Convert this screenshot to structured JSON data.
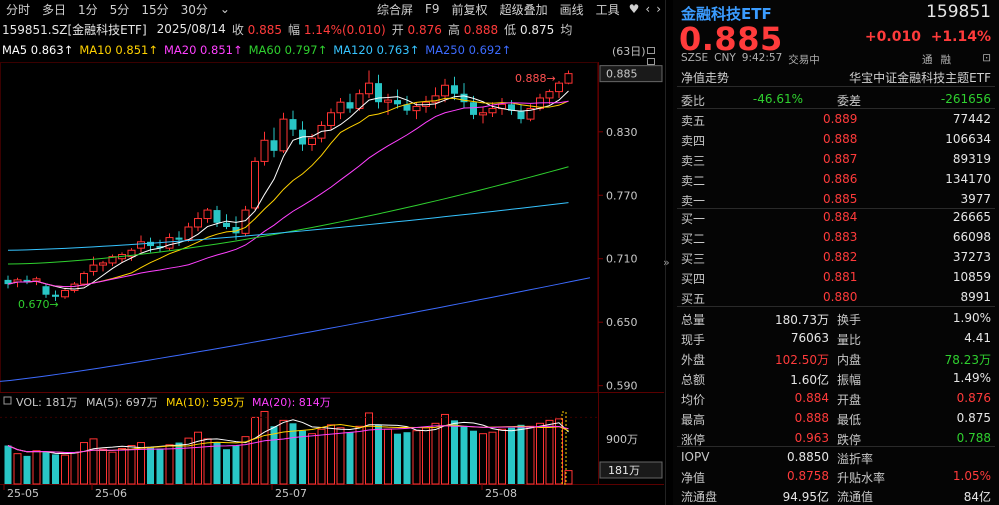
{
  "toolbar": {
    "items": [
      "分时",
      "多日",
      "1分",
      "5分",
      "15分",
      "30分",
      "⌄"
    ],
    "right_items": [
      "综合屏",
      "F9",
      "前复权",
      "超级叠加",
      "画线",
      "工具",
      "♥",
      "‹",
      "›"
    ]
  },
  "info": {
    "symbol": "159851.SZ[金融科技ETF]",
    "date": "2025/08/14",
    "close_label": "收",
    "close": "0.885",
    "amp_label": "幅",
    "amp": "1.14%(0.010)",
    "open_label": "开",
    "open": "0.876",
    "high_label": "高",
    "high": "0.888",
    "low_label": "低",
    "low": "0.875",
    "avg_label": "均"
  },
  "ma": {
    "ma5": "MA5 0.863↑",
    "ma10": "MA10 0.851↑",
    "ma20": "MA20 0.851↑",
    "ma60": "MA60 0.797↑",
    "ma120": "MA120 0.763↑",
    "ma250": "MA250 0.692↑",
    "colors": {
      "ma5": "#ffffff",
      "ma10": "#ffd200",
      "ma20": "#ff40ff",
      "ma60": "#2fd02f",
      "ma120": "#36c4ff",
      "ma250": "#3d6bff"
    }
  },
  "cycle": "(63日)",
  "price_axis": {
    "labels": [
      "0.885",
      "0.830",
      "0.770",
      "0.710",
      "0.650",
      "0.590"
    ],
    "high_marker": "0.888→",
    "low_marker": "0.670→"
  },
  "volume": {
    "header": "VOL: 181万",
    "ma5": "MA(5): 697万",
    "ma10": "MA(10): 595万",
    "ma20": "MA(20): 814万",
    "axis_top": "900万",
    "current": "181万"
  },
  "dates": [
    "25-05",
    "25-06",
    "25-07",
    "25-08"
  ],
  "collapse": "»",
  "panel": {
    "title": "金融科技ETF",
    "code": "159851",
    "price": "0.885",
    "change": "+0.010",
    "change_pct": "+1.14%",
    "meta": [
      "SZSE",
      "CNY",
      "9:42:57",
      "交易中"
    ],
    "tong": [
      "通",
      "融"
    ],
    "subtitle_left": "净值走势",
    "subtitle_right": "华宝中证金融科技主题ETF",
    "weibi_label": "委比",
    "weibi": "-46.61%",
    "weicha_label": "委差",
    "weicha": "-261656",
    "asks": [
      {
        "label": "卖五",
        "price": "0.889",
        "vol": "77442"
      },
      {
        "label": "卖四",
        "price": "0.888",
        "vol": "106634"
      },
      {
        "label": "卖三",
        "price": "0.887",
        "vol": "89319"
      },
      {
        "label": "卖二",
        "price": "0.886",
        "vol": "134170"
      },
      {
        "label": "卖一",
        "price": "0.885",
        "vol": "3977"
      }
    ],
    "bids": [
      {
        "label": "买一",
        "price": "0.884",
        "vol": "26665"
      },
      {
        "label": "买二",
        "price": "0.883",
        "vol": "66098"
      },
      {
        "label": "买三",
        "price": "0.882",
        "vol": "37273"
      },
      {
        "label": "买四",
        "price": "0.881",
        "vol": "10859"
      },
      {
        "label": "买五",
        "price": "0.880",
        "vol": "8991"
      }
    ],
    "stats": [
      {
        "l1": "总量",
        "v1": "180.73万",
        "c1": "white",
        "l2": "换手",
        "v2": "1.90%",
        "c2": "white"
      },
      {
        "l1": "现手",
        "v1": "76063",
        "c1": "white",
        "l2": "量比",
        "v2": "4.41",
        "c2": "white"
      },
      {
        "l1": "外盘",
        "v1": "102.50万",
        "c1": "red",
        "l2": "内盘",
        "v2": "78.23万",
        "c2": "green"
      },
      {
        "l1": "总额",
        "v1": "1.60亿",
        "c1": "white",
        "l2": "振幅",
        "v2": "1.49%",
        "c2": "white"
      },
      {
        "l1": "均价",
        "v1": "0.884",
        "c1": "red",
        "l2": "开盘",
        "v2": "0.876",
        "c2": "red"
      },
      {
        "l1": "最高",
        "v1": "0.888",
        "c1": "red",
        "l2": "最低",
        "v2": "0.875",
        "c2": "white"
      },
      {
        "l1": "涨停",
        "v1": "0.963",
        "c1": "red",
        "l2": "跌停",
        "v2": "0.788",
        "c2": "green"
      }
    ],
    "stats2": [
      {
        "l1": "IOPV",
        "v1": "0.8850",
        "c1": "white",
        "l2": "溢折率",
        "v2": "",
        "c2": "white"
      },
      {
        "l1": "净值",
        "v1": "0.8758",
        "c1": "red",
        "l2": "升贴水率",
        "v2": "1.05%",
        "c2": "red"
      },
      {
        "l1": "流通盘",
        "v1": "94.95亿",
        "c1": "white",
        "l2": "流通值",
        "v2": "84亿",
        "c2": "white"
      }
    ]
  },
  "candles": [
    [
      0.69,
      0.694,
      0.682,
      0.686
    ],
    [
      0.688,
      0.692,
      0.683,
      0.69
    ],
    [
      0.69,
      0.694,
      0.686,
      0.688
    ],
    [
      0.689,
      0.693,
      0.685,
      0.691
    ],
    [
      0.684,
      0.686,
      0.673,
      0.676
    ],
    [
      0.676,
      0.68,
      0.67,
      0.674
    ],
    [
      0.674,
      0.682,
      0.672,
      0.68
    ],
    [
      0.68,
      0.688,
      0.678,
      0.686
    ],
    [
      0.686,
      0.698,
      0.684,
      0.696
    ],
    [
      0.698,
      0.712,
      0.694,
      0.704
    ],
    [
      0.704,
      0.708,
      0.698,
      0.706
    ],
    [
      0.706,
      0.714,
      0.703,
      0.712
    ],
    [
      0.71,
      0.716,
      0.706,
      0.714
    ],
    [
      0.712,
      0.72,
      0.708,
      0.718
    ],
    [
      0.72,
      0.732,
      0.716,
      0.726
    ],
    [
      0.726,
      0.73,
      0.716,
      0.722
    ],
    [
      0.722,
      0.728,
      0.716,
      0.72
    ],
    [
      0.72,
      0.734,
      0.718,
      0.73
    ],
    [
      0.73,
      0.736,
      0.722,
      0.728
    ],
    [
      0.728,
      0.744,
      0.726,
      0.74
    ],
    [
      0.74,
      0.754,
      0.736,
      0.748
    ],
    [
      0.748,
      0.758,
      0.744,
      0.756
    ],
    [
      0.756,
      0.76,
      0.74,
      0.744
    ],
    [
      0.744,
      0.752,
      0.738,
      0.74
    ],
    [
      0.74,
      0.75,
      0.728,
      0.734
    ],
    [
      0.734,
      0.76,
      0.732,
      0.756
    ],
    [
      0.758,
      0.806,
      0.756,
      0.802
    ],
    [
      0.802,
      0.83,
      0.798,
      0.822
    ],
    [
      0.822,
      0.834,
      0.806,
      0.812
    ],
    [
      0.812,
      0.848,
      0.81,
      0.842
    ],
    [
      0.842,
      0.85,
      0.826,
      0.832
    ],
    [
      0.832,
      0.84,
      0.812,
      0.818
    ],
    [
      0.818,
      0.828,
      0.812,
      0.824
    ],
    [
      0.824,
      0.84,
      0.82,
      0.836
    ],
    [
      0.836,
      0.852,
      0.832,
      0.848
    ],
    [
      0.848,
      0.862,
      0.842,
      0.858
    ],
    [
      0.858,
      0.866,
      0.848,
      0.852
    ],
    [
      0.852,
      0.87,
      0.85,
      0.866
    ],
    [
      0.866,
      0.888,
      0.862,
      0.876
    ],
    [
      0.876,
      0.884,
      0.852,
      0.858
    ],
    [
      0.858,
      0.866,
      0.846,
      0.86
    ],
    [
      0.86,
      0.87,
      0.852,
      0.856
    ],
    [
      0.856,
      0.864,
      0.846,
      0.85
    ],
    [
      0.85,
      0.858,
      0.842,
      0.854
    ],
    [
      0.854,
      0.864,
      0.848,
      0.858
    ],
    [
      0.858,
      0.872,
      0.852,
      0.864
    ],
    [
      0.864,
      0.88,
      0.858,
      0.874
    ],
    [
      0.874,
      0.882,
      0.86,
      0.866
    ],
    [
      0.866,
      0.876,
      0.852,
      0.858
    ],
    [
      0.858,
      0.864,
      0.842,
      0.846
    ],
    [
      0.846,
      0.854,
      0.838,
      0.848
    ],
    [
      0.848,
      0.858,
      0.844,
      0.852
    ],
    [
      0.852,
      0.862,
      0.846,
      0.856
    ],
    [
      0.856,
      0.86,
      0.846,
      0.85
    ],
    [
      0.85,
      0.856,
      0.838,
      0.842
    ],
    [
      0.842,
      0.856,
      0.84,
      0.852
    ],
    [
      0.852,
      0.866,
      0.85,
      0.862
    ],
    [
      0.862,
      0.87,
      0.856,
      0.868
    ],
    [
      0.868,
      0.878,
      0.862,
      0.876
    ],
    [
      0.876,
      0.888,
      0.875,
      0.885
    ]
  ],
  "vols": [
    520,
    410,
    380,
    450,
    430,
    400,
    390,
    420,
    560,
    610,
    470,
    430,
    480,
    520,
    560,
    500,
    480,
    530,
    560,
    620,
    700,
    610,
    560,
    470,
    520,
    640,
    900,
    980,
    780,
    860,
    820,
    720,
    680,
    740,
    800,
    760,
    700,
    780,
    960,
    800,
    740,
    680,
    700,
    720,
    760,
    820,
    940,
    860,
    780,
    720,
    680,
    700,
    740,
    760,
    800,
    780,
    820,
    860,
    880,
    181
  ]
}
